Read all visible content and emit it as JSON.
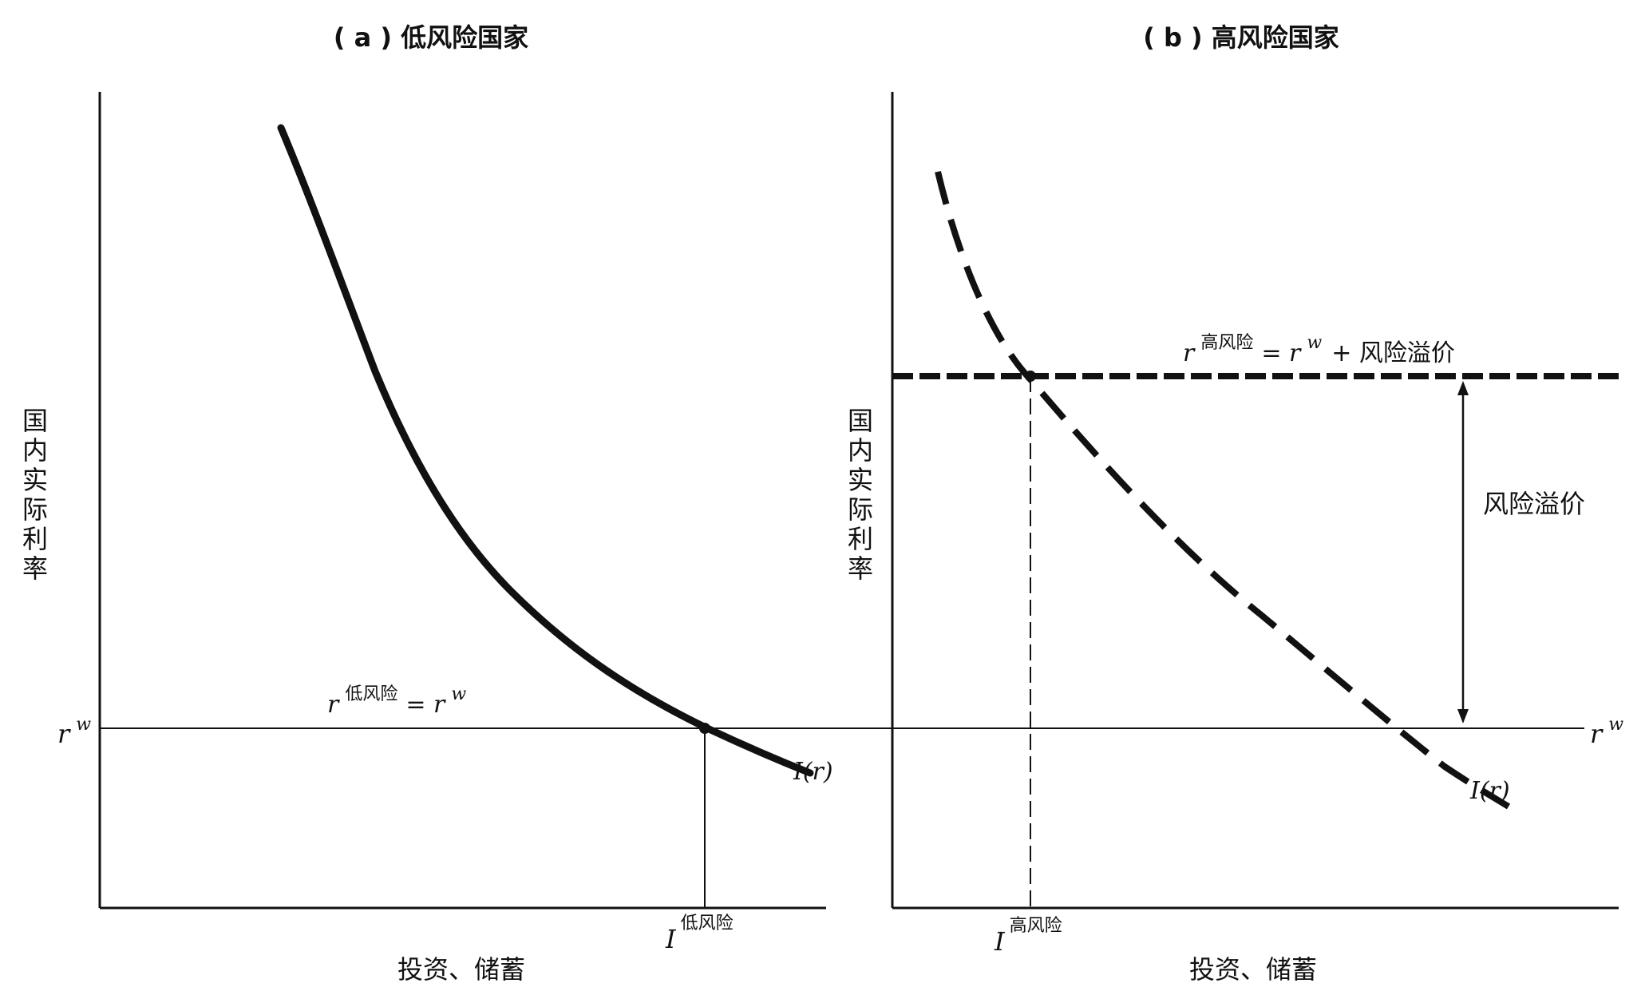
{
  "panels": {
    "a": {
      "title": "( a ) 低风险国家",
      "ylabel": [
        "国",
        "内",
        "实",
        "际",
        "利",
        "率"
      ],
      "xlabel": "投资、储蓄",
      "rw_label": {
        "base": "r",
        "sup": "w"
      },
      "eq_label": {
        "r": "r",
        "sup1": "低风险",
        "eq": "= r",
        "sup2": "w"
      },
      "curve_label": "I(r)",
      "x_marker": {
        "base": "I",
        "sup": "低风险"
      }
    },
    "b": {
      "title": "( b ) 高风险国家",
      "ylabel": [
        "国",
        "内",
        "实",
        "际",
        "利",
        "率"
      ],
      "xlabel": "投资、储蓄",
      "rw_label": {
        "base": "r",
        "sup": "w"
      },
      "eq_label": {
        "r": "r",
        "sup1": "高风险",
        "eq": "= r",
        "sup2": "w",
        "tail": "+ 风险溢价"
      },
      "curve_label": "I(r)",
      "x_marker": {
        "base": "I",
        "sup": "高风险"
      },
      "premium_label": "风险溢价"
    }
  },
  "colors": {
    "ink": "#111111",
    "background": "#ffffff"
  }
}
